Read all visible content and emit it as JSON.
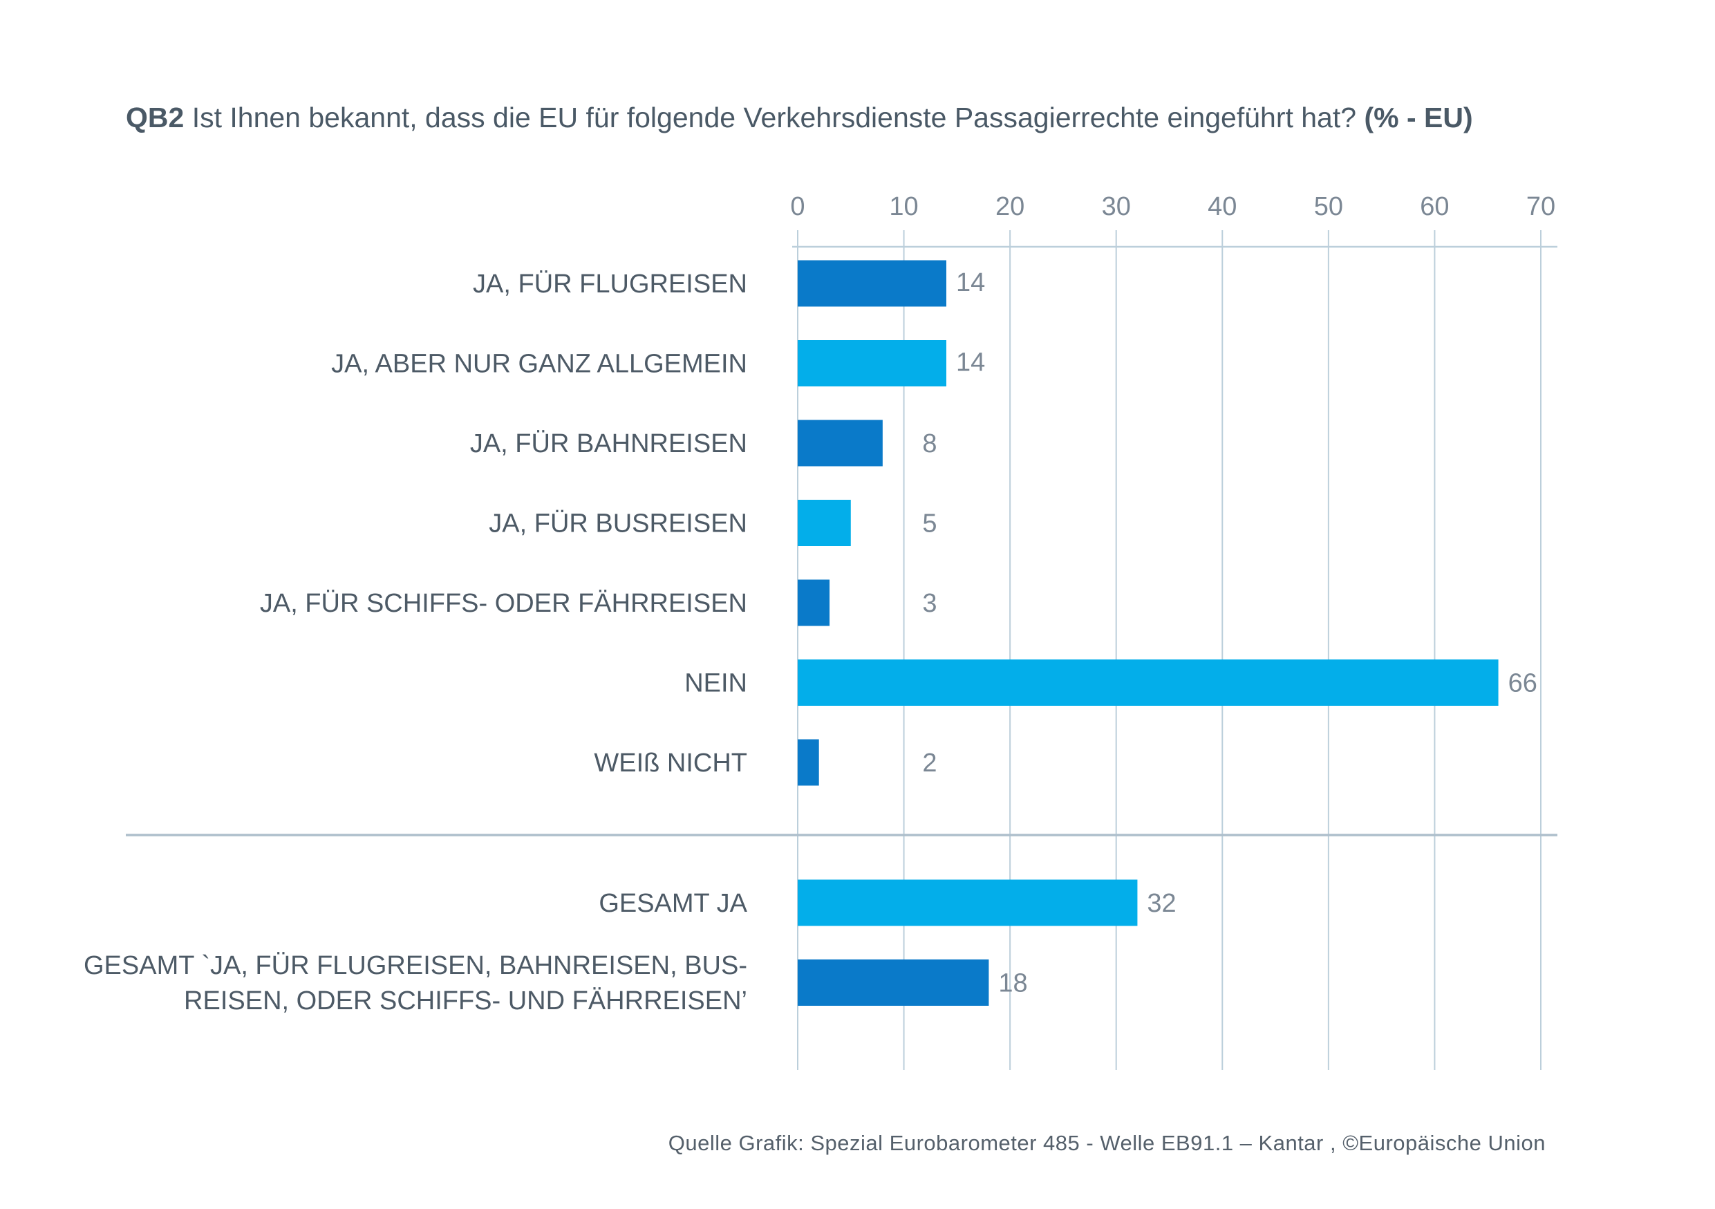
{
  "title": {
    "prefix": "QB2",
    "text": " Ist Ihnen bekannt, dass die EU für folgende Verkehrsdienste Passagierrechte eingeführt hat? ",
    "suffix": "(% - EU)"
  },
  "source": "Quelle Grafik: Spezial Eurobarometer 485 - Welle EB91.1 – Kantar , ©Europäische Union",
  "colors": {
    "dark_blue": "#0a7ac9",
    "light_blue": "#03aeea",
    "grid": "#bccfdb",
    "divider": "#aebfcc"
  },
  "chart_data": {
    "type": "bar",
    "orientation": "horizontal",
    "xlim": [
      0,
      70
    ],
    "ticks": [
      "0",
      "10",
      "20",
      "30",
      "40",
      "50",
      "60",
      "70"
    ],
    "tick_values": [
      0,
      10,
      20,
      30,
      40,
      50,
      60,
      70
    ],
    "grid": true,
    "groups": [
      {
        "bars": [
          {
            "label": [
              "JA, FÜR FLUGREISEN"
            ],
            "value": 14,
            "color": "dark_blue"
          },
          {
            "label": [
              "JA, ABER NUR GANZ ALLGEMEIN"
            ],
            "value": 14,
            "color": "light_blue"
          },
          {
            "label": [
              "JA, FÜR BAHNREISEN"
            ],
            "value": 8,
            "color": "dark_blue"
          },
          {
            "label": [
              "JA, FÜR BUSREISEN"
            ],
            "value": 5,
            "color": "light_blue"
          },
          {
            "label": [
              "JA, FÜR SCHIFFS- ODER FÄHRREISEN"
            ],
            "value": 3,
            "color": "dark_blue"
          },
          {
            "label": [
              "NEIN"
            ],
            "value": 66,
            "color": "light_blue"
          },
          {
            "label": [
              "WEIß NICHT"
            ],
            "value": 2,
            "color": "dark_blue"
          }
        ]
      },
      {
        "bars": [
          {
            "label": [
              "GESAMT JA"
            ],
            "value": 32,
            "color": "light_blue"
          },
          {
            "label": [
              "GESAMT `JA, FÜR FLUGREISEN, BAHNREISEN, BUS-",
              "REISEN, ODER SCHIFFS- UND FÄHRREISEN’"
            ],
            "value": 18,
            "color": "dark_blue"
          }
        ]
      }
    ]
  }
}
